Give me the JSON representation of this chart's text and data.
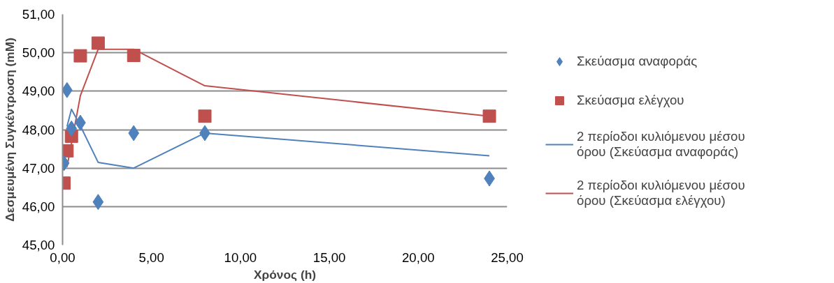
{
  "chart_data": {
    "type": "scatter",
    "xlabel": "Χρόνος (h)",
    "ylabel": "Δεσμευμένη Συγκέντρωση (mM)",
    "x": [
      0.08,
      0.25,
      0.5,
      1,
      2,
      4,
      8,
      24
    ],
    "series": [
      {
        "name": "Σκεύασμα αναφοράς",
        "color": "#4f81bd",
        "marker": "diamond",
        "values": [
          47.13,
          49.03,
          48.03,
          48.18,
          46.12,
          47.91,
          47.91,
          46.73
        ]
      },
      {
        "name": "Σκεύασμα ελέγχου",
        "color": "#c0504d",
        "marker": "square",
        "values": [
          46.61,
          47.45,
          47.83,
          49.92,
          50.25,
          49.93,
          48.35,
          48.35
        ]
      },
      {
        "name": "2 περίοδοι κυλιόμενου μέσου όρου (Σκεύασμα αναφοράς)",
        "type": "line",
        "marker": "none",
        "color": "#4f81bd",
        "x": [
          0.25,
          0.5,
          1,
          2,
          4,
          8,
          24
        ],
        "values": [
          48.08,
          48.53,
          48.1,
          47.15,
          47.0,
          47.91,
          47.32
        ]
      },
      {
        "name": "2 περίοδοι κυλιόμενου μέσου όρου (Σκεύασμα ελέγχου)",
        "type": "line",
        "marker": "none",
        "color": "#c0504d",
        "x": [
          0.25,
          0.5,
          1,
          2,
          4,
          8,
          24
        ],
        "values": [
          47.03,
          47.64,
          48.88,
          50.09,
          50.09,
          49.14,
          48.35
        ]
      }
    ],
    "xlim": [
      0,
      25
    ],
    "ylim": [
      45,
      51
    ],
    "xticks": [
      {
        "value": 0,
        "label": "0,00"
      },
      {
        "value": 5,
        "label": "5,00"
      },
      {
        "value": 10,
        "label": "10,00"
      },
      {
        "value": 15,
        "label": "15,00"
      },
      {
        "value": 20,
        "label": "20,00"
      },
      {
        "value": 25,
        "label": "25,00"
      }
    ],
    "yticks": [
      {
        "value": 45,
        "label": "45,00"
      },
      {
        "value": 46,
        "label": "46,00"
      },
      {
        "value": 47,
        "label": "47,00"
      },
      {
        "value": 48,
        "label": "48,00"
      },
      {
        "value": 49,
        "label": "49,00"
      },
      {
        "value": 50,
        "label": "50,00"
      },
      {
        "value": 51,
        "label": "51,00"
      }
    ],
    "grid": "y",
    "legend": "right"
  }
}
